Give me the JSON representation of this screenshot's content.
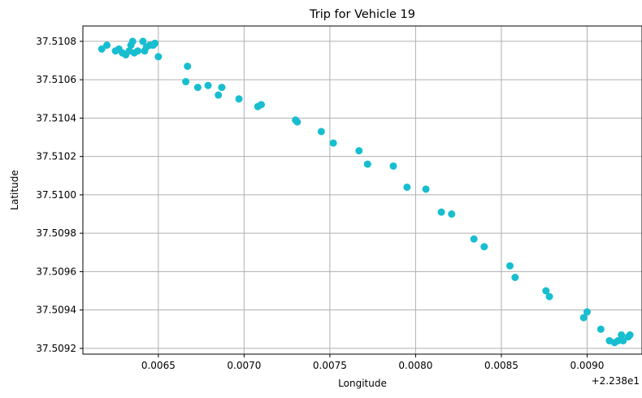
{
  "chart_data": {
    "type": "scatter",
    "title": "Trip for Vehicle 19",
    "xlabel": "Longitude",
    "ylabel": "Latitude",
    "x_offset_label": "+2.238e1",
    "xlim": [
      0.00606,
      0.00932
    ],
    "ylim": [
      37.50917,
      37.51088
    ],
    "x_ticks": [
      0.0065,
      0.007,
      0.0075,
      0.008,
      0.0085,
      0.009
    ],
    "x_tick_labels": [
      "0.0065",
      "0.0070",
      "0.0075",
      "0.0080",
      "0.0085",
      "0.0090"
    ],
    "y_ticks": [
      37.5092,
      37.5094,
      37.5096,
      37.5098,
      37.51,
      37.5102,
      37.5104,
      37.5106,
      37.5108
    ],
    "y_tick_labels": [
      "37.5092",
      "37.5094",
      "37.5096",
      "37.5098",
      "37.5100",
      "37.5102",
      "37.5104",
      "37.5106",
      "37.5108"
    ],
    "grid": true,
    "marker_color": "#17becf",
    "series": [
      {
        "points": [
          [
            0.00617,
            37.51076
          ],
          [
            0.0062,
            37.51078
          ],
          [
            0.00625,
            37.51075
          ],
          [
            0.00627,
            37.51076
          ],
          [
            0.00629,
            37.51074
          ],
          [
            0.00631,
            37.51073
          ],
          [
            0.00633,
            37.51075
          ],
          [
            0.00634,
            37.51078
          ],
          [
            0.00635,
            37.5108
          ],
          [
            0.00636,
            37.51074
          ],
          [
            0.00638,
            37.51075
          ],
          [
            0.00641,
            37.5108
          ],
          [
            0.00642,
            37.51075
          ],
          [
            0.00643,
            37.51077
          ],
          [
            0.00645,
            37.51078
          ],
          [
            0.00647,
            37.51078
          ],
          [
            0.00648,
            37.51079
          ],
          [
            0.0065,
            37.51072
          ],
          [
            0.00666,
            37.51059
          ],
          [
            0.00667,
            37.51067
          ],
          [
            0.00673,
            37.51056
          ],
          [
            0.00679,
            37.51057
          ],
          [
            0.00685,
            37.51052
          ],
          [
            0.00687,
            37.51056
          ],
          [
            0.00697,
            37.5105
          ],
          [
            0.00708,
            37.51046
          ],
          [
            0.0071,
            37.51047
          ],
          [
            0.0073,
            37.51039
          ],
          [
            0.00731,
            37.51038
          ],
          [
            0.00745,
            37.51033
          ],
          [
            0.00752,
            37.51027
          ],
          [
            0.00767,
            37.51023
          ],
          [
            0.00772,
            37.51016
          ],
          [
            0.00787,
            37.51015
          ],
          [
            0.00795,
            37.51004
          ],
          [
            0.00806,
            37.51003
          ],
          [
            0.00815,
            37.50991
          ],
          [
            0.00821,
            37.5099
          ],
          [
            0.00834,
            37.50977
          ],
          [
            0.0084,
            37.50973
          ],
          [
            0.00855,
            37.50963
          ],
          [
            0.00858,
            37.50957
          ],
          [
            0.00876,
            37.5095
          ],
          [
            0.00878,
            37.50947
          ],
          [
            0.00898,
            37.50936
          ],
          [
            0.009,
            37.50939
          ],
          [
            0.00908,
            37.5093
          ],
          [
            0.00913,
            37.50924
          ],
          [
            0.00916,
            37.50923
          ],
          [
            0.00918,
            37.50924
          ],
          [
            0.0092,
            37.50927
          ],
          [
            0.00921,
            37.50924
          ],
          [
            0.00924,
            37.50926
          ],
          [
            0.00925,
            37.50927
          ]
        ]
      }
    ]
  }
}
